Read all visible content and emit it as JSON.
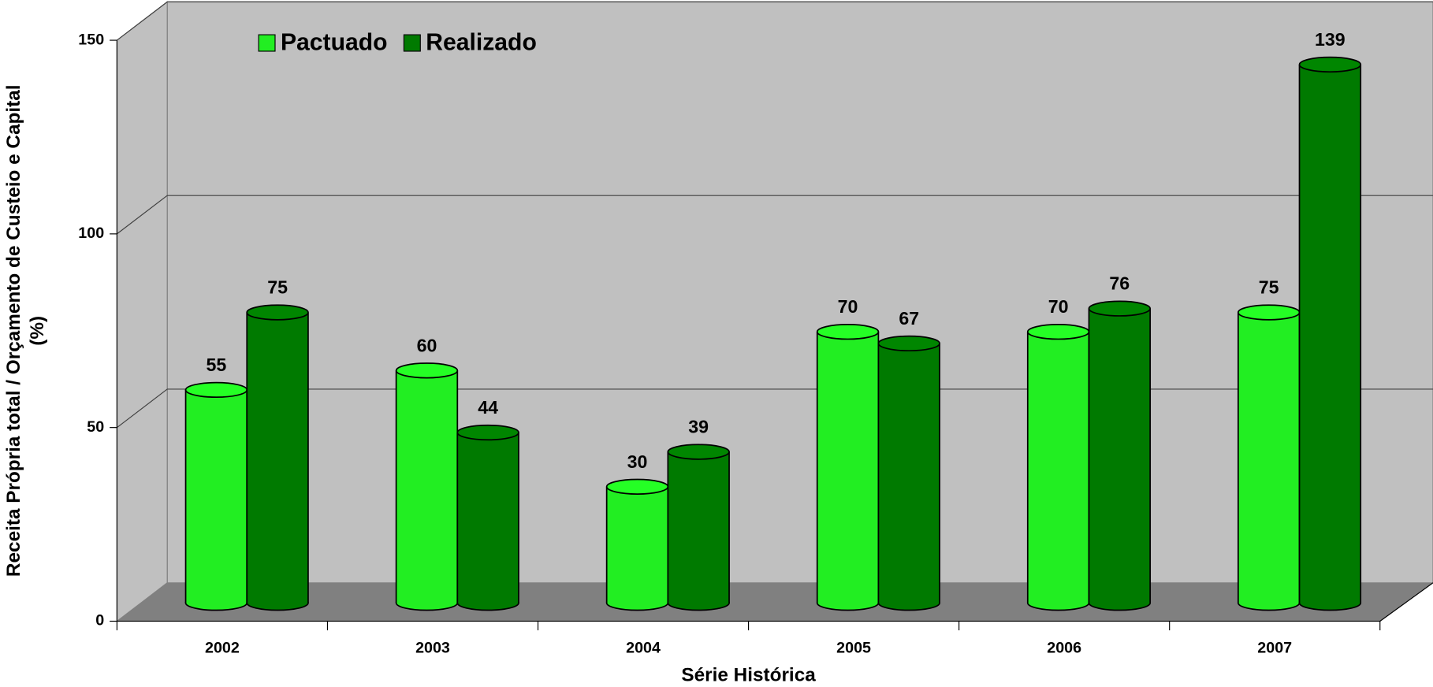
{
  "chart_data": {
    "type": "bar3d",
    "ylabel": "Receita Própria total / Orçamento de Custeio e Capital",
    "ylabel_unit": "(%)",
    "xlabel": "Série Histórica",
    "categories": [
      "2002",
      "2003",
      "2004",
      "2005",
      "2006",
      "2007"
    ],
    "series": [
      {
        "name": "Pactuado",
        "color": "#22ee22",
        "values": [
          55,
          60,
          30,
          70,
          70,
          75
        ]
      },
      {
        "name": "Realizado",
        "color": "#007a00",
        "values": [
          75,
          44,
          39,
          67,
          76,
          139
        ]
      }
    ],
    "ylim": [
      0,
      150
    ],
    "yticks": [
      0,
      50,
      100,
      150
    ],
    "grid": true,
    "legend": "top-left"
  }
}
